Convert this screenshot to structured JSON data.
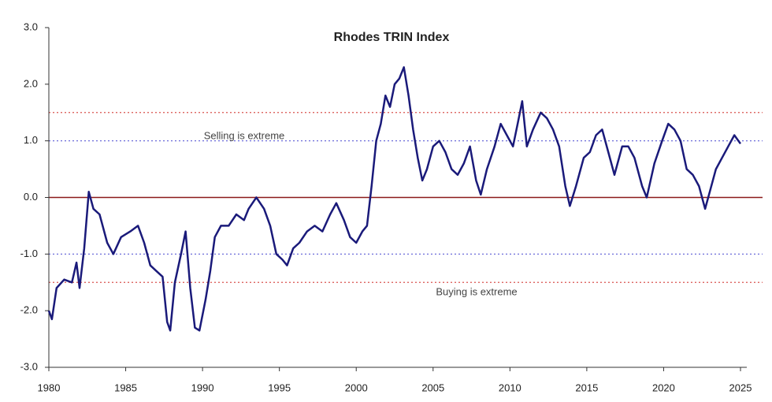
{
  "chart_data": {
    "type": "line",
    "title": "Rhodes TRIN Index",
    "annotations": [
      "Selling is extreme",
      "Buying is extreme"
    ],
    "reference_lines": [
      {
        "value": 1.5,
        "color": "#d9534f",
        "style": "dotted"
      },
      {
        "value": 1,
        "color": "#5b5bd6",
        "style": "dotted"
      },
      {
        "value": 0,
        "color": "#8b1a1a",
        "style": "solid"
      },
      {
        "value": -1,
        "color": "#5b5bd6",
        "style": "dotted"
      },
      {
        "value": -1.5,
        "color": "#d9534f",
        "style": "dotted"
      }
    ],
    "xlim": [
      1980,
      2025
    ],
    "xticks": [
      1980,
      1985,
      1990,
      1995,
      2000,
      2005,
      2010,
      2015,
      2020,
      2025
    ],
    "ylim": [
      -3,
      3
    ],
    "yticks": [
      {
        "value": -3,
        "label": "-3.0"
      },
      {
        "value": -2,
        "label": "-2.0"
      },
      {
        "value": -1,
        "label": "-1.0"
      },
      {
        "value": 0,
        "label": "0.0"
      },
      {
        "value": 1,
        "label": "1.0"
      },
      {
        "value": 2,
        "label": "2.0"
      },
      {
        "value": 3,
        "label": "3.0"
      }
    ],
    "grid": false,
    "x": [
      1980,
      1980.2,
      1980.5,
      1981,
      1981.5,
      1981.8,
      1982,
      1982.3,
      1982.6,
      1982.9,
      1983.3,
      1983.8,
      1984.2,
      1984.7,
      1985.3,
      1985.8,
      1986.2,
      1986.6,
      1987,
      1987.4,
      1987.7,
      1987.9,
      1988.2,
      1988.6,
      1988.9,
      1989.2,
      1989.5,
      1989.8,
      1990.2,
      1990.5,
      1990.8,
      1991.2,
      1991.7,
      1992.2,
      1992.7,
      1993,
      1993.5,
      1994,
      1994.4,
      1994.8,
      1995.2,
      1995.5,
      1995.9,
      1996.3,
      1996.8,
      1997.3,
      1997.8,
      1998.3,
      1998.7,
      1999.2,
      1999.6,
      2000,
      2000.4,
      2000.7,
      2001,
      2001.3,
      2001.6,
      2001.9,
      2002.2,
      2002.5,
      2002.8,
      2003.1,
      2003.4,
      2003.7,
      2004,
      2004.3,
      2004.6,
      2005,
      2005.4,
      2005.8,
      2006.2,
      2006.6,
      2007,
      2007.4,
      2007.8,
      2008.1,
      2008.5,
      2009,
      2009.4,
      2009.8,
      2010.2,
      2010.5,
      2010.8,
      2011.1,
      2011.5,
      2012,
      2012.4,
      2012.8,
      2013.2,
      2013.6,
      2013.9,
      2014.3,
      2014.8,
      2015.2,
      2015.6,
      2016,
      2016.4,
      2016.8,
      2017.3,
      2017.7,
      2018.1,
      2018.6,
      2018.9,
      2019.4,
      2019.9,
      2020.3,
      2020.7,
      2021.1,
      2021.5,
      2021.9,
      2022.3,
      2022.7,
      2023,
      2023.4,
      2023.8,
      2024.2,
      2024.6,
      2025
    ],
    "series": [
      {
        "name": "Rhodes TRIN Index",
        "color": "#1a1a7a",
        "values": [
          -2.0,
          -2.15,
          -1.6,
          -1.45,
          -1.5,
          -1.15,
          -1.6,
          -0.9,
          0.1,
          -0.2,
          -0.3,
          -0.8,
          -1.0,
          -0.7,
          -0.6,
          -0.5,
          -0.8,
          -1.2,
          -1.3,
          -1.4,
          -2.2,
          -2.35,
          -1.5,
          -1.0,
          -0.6,
          -1.6,
          -2.3,
          -2.35,
          -1.8,
          -1.3,
          -0.7,
          -0.5,
          -0.5,
          -0.3,
          -0.4,
          -0.2,
          0.0,
          -0.2,
          -0.5,
          -1.0,
          -1.1,
          -1.2,
          -0.9,
          -0.8,
          -0.6,
          -0.5,
          -0.6,
          -0.3,
          -0.1,
          -0.4,
          -0.7,
          -0.8,
          -0.6,
          -0.5,
          0.2,
          1.0,
          1.3,
          1.8,
          1.6,
          2.0,
          2.1,
          2.3,
          1.8,
          1.2,
          0.7,
          0.3,
          0.5,
          0.9,
          1.0,
          0.8,
          0.5,
          0.4,
          0.6,
          0.9,
          0.3,
          0.05,
          0.5,
          0.9,
          1.3,
          1.1,
          0.9,
          1.3,
          1.7,
          0.9,
          1.2,
          1.5,
          1.4,
          1.2,
          0.9,
          0.2,
          -0.15,
          0.2,
          0.7,
          0.8,
          1.1,
          1.2,
          0.8,
          0.4,
          0.9,
          0.9,
          0.7,
          0.2,
          0.0,
          0.6,
          1.0,
          1.3,
          1.2,
          1.0,
          0.5,
          0.4,
          0.2,
          -0.2,
          0.1,
          0.5,
          0.7,
          0.9,
          1.1,
          0.95
        ]
      }
    ]
  }
}
